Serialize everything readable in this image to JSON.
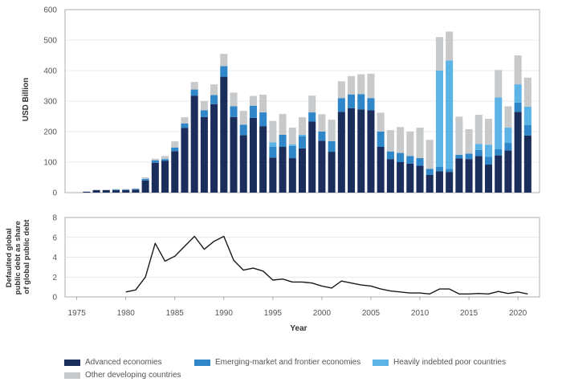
{
  "colors": {
    "advanced": "#1b2d5b",
    "emerging": "#2f86c8",
    "hipc": "#5bb3e6",
    "other": "#c7c9cb",
    "line": "#1a1a1a",
    "grid": "#e0e0e0",
    "axis": "#9a9a9a"
  },
  "chart_data": [
    {
      "type": "bar",
      "stacked": true,
      "ylabel": "USD Billion",
      "ylim": [
        0,
        600
      ],
      "yticks": [
        0,
        100,
        200,
        300,
        400,
        500,
        600
      ],
      "x": [
        1975,
        1976,
        1977,
        1978,
        1979,
        1980,
        1981,
        1982,
        1983,
        1984,
        1985,
        1986,
        1987,
        1988,
        1989,
        1990,
        1991,
        1992,
        1993,
        1994,
        1995,
        1996,
        1997,
        1998,
        1999,
        2000,
        2001,
        2002,
        2003,
        2004,
        2005,
        2006,
        2007,
        2008,
        2009,
        2010,
        2011,
        2012,
        2013,
        2014,
        2015,
        2016,
        2017,
        2018,
        2019,
        2020,
        2021
      ],
      "series": [
        {
          "name": "Advanced economies",
          "color_key": "advanced",
          "values": [
            0,
            3,
            8,
            8,
            8,
            8,
            10,
            40,
            98,
            104,
            136,
            212,
            318,
            248,
            290,
            380,
            248,
            188,
            245,
            218,
            115,
            150,
            113,
            145,
            233,
            170,
            134,
            265,
            277,
            273,
            270,
            150,
            110,
            100,
            95,
            88,
            58,
            70,
            68,
            112,
            110,
            120,
            92,
            122,
            138,
            265,
            187
          ]
        },
        {
          "name": "Emerging-market and frontier economies",
          "color_key": "emerging",
          "values": [
            0,
            0,
            0,
            0,
            2,
            2,
            2,
            5,
            8,
            6,
            12,
            15,
            20,
            22,
            30,
            35,
            35,
            35,
            40,
            45,
            35,
            40,
            40,
            40,
            30,
            30,
            35,
            45,
            45,
            50,
            40,
            50,
            25,
            30,
            25,
            25,
            20,
            15,
            10,
            12,
            18,
            20,
            25,
            20,
            25,
            30,
            35
          ]
        },
        {
          "name": "Heavily indebted poor countries",
          "color_key": "hipc",
          "values": [
            0,
            0,
            0,
            0,
            0,
            0,
            0,
            0,
            0,
            0,
            0,
            0,
            0,
            0,
            0,
            0,
            0,
            0,
            0,
            0,
            15,
            0,
            5,
            5,
            0,
            0,
            0,
            0,
            0,
            0,
            0,
            0,
            0,
            0,
            0,
            0,
            0,
            315,
            355,
            0,
            0,
            20,
            40,
            170,
            50,
            60,
            60
          ]
        },
        {
          "name": "Other developing countries",
          "color_key": "other",
          "values": [
            0,
            0,
            2,
            2,
            2,
            2,
            2,
            5,
            5,
            10,
            20,
            20,
            25,
            30,
            35,
            40,
            45,
            45,
            32,
            58,
            70,
            68,
            55,
            57,
            55,
            57,
            70,
            55,
            60,
            65,
            80,
            62,
            70,
            85,
            80,
            100,
            95,
            110,
            95,
            125,
            80,
            95,
            85,
            90,
            70,
            95,
            95
          ]
        }
      ]
    },
    {
      "type": "line",
      "ylabel": "Defaulted global public debt as share of global public debt",
      "ylim": [
        0,
        8
      ],
      "yticks": [
        0,
        2,
        4,
        6,
        8
      ],
      "xlabel": "Year",
      "xticks": [
        1975,
        1980,
        1985,
        1990,
        1995,
        2000,
        2005,
        2010,
        2015,
        2020
      ],
      "xlim": [
        1973.8,
        2022.2
      ],
      "x": [
        1980,
        1981,
        1982,
        1983,
        1984,
        1985,
        1986,
        1987,
        1988,
        1989,
        1990,
        1991,
        1992,
        1993,
        1994,
        1995,
        1996,
        1997,
        1998,
        1999,
        2000,
        2001,
        2002,
        2003,
        2004,
        2005,
        2006,
        2007,
        2008,
        2009,
        2010,
        2011,
        2012,
        2013,
        2014,
        2015,
        2016,
        2017,
        2018,
        2019,
        2020,
        2021
      ],
      "values": [
        0.5,
        0.7,
        2.0,
        5.4,
        3.6,
        4.1,
        5.1,
        6.1,
        4.8,
        5.6,
        6.1,
        3.7,
        2.7,
        2.9,
        2.6,
        1.7,
        1.8,
        1.5,
        1.5,
        1.4,
        1.1,
        0.9,
        1.6,
        1.4,
        1.2,
        1.1,
        0.8,
        0.6,
        0.5,
        0.4,
        0.4,
        0.3,
        0.8,
        0.8,
        0.3,
        0.3,
        0.35,
        0.3,
        0.55,
        0.35,
        0.5,
        0.3
      ]
    }
  ],
  "legend": [
    {
      "label": "Advanced economies",
      "color_key": "advanced"
    },
    {
      "label": "Emerging-market and frontier economies",
      "color_key": "emerging"
    },
    {
      "label": "Heavily indebted poor countries",
      "color_key": "hipc"
    },
    {
      "label": "Other developing countries",
      "color_key": "other"
    }
  ]
}
